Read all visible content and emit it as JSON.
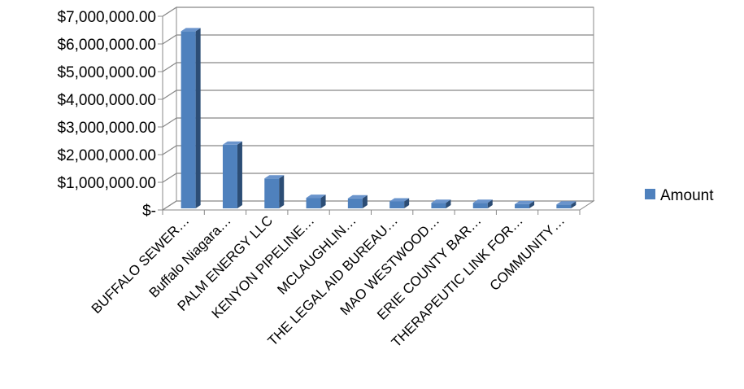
{
  "chart_data": {
    "type": "bar",
    "style": "3d-clustered-column",
    "categories": [
      "BUFFALO SEWER…",
      "Buffalo Niagara…",
      "PALM ENERGY LLC",
      "KENYON PIPELINE…",
      "MCLAUGHLIN…",
      "THE LEGAL AID BUREAU…",
      "MAO WESTWOOD…",
      "ERIE COUNTY BAR…",
      "THERAPEUTIC LINK FOR…",
      "COMMUNITY…"
    ],
    "series": [
      {
        "name": "Amount",
        "color": "#4F81BD",
        "values": [
          6400000,
          2300000,
          1080000,
          380000,
          360000,
          250000,
          200000,
          200000,
          150000,
          140000
        ]
      }
    ],
    "y_ticks": [
      "$-",
      "$1,000,000.00",
      "$2,000,000.00",
      "$3,000,000.00",
      "$4,000,000.00",
      "$5,000,000.00",
      "$6,000,000.00",
      "$7,000,000.00"
    ],
    "ylim": [
      0,
      7000000
    ],
    "title": "",
    "xlabel": "",
    "ylabel": "",
    "grid": true,
    "legend": {
      "position": "right",
      "entries": [
        "Amount"
      ]
    }
  }
}
